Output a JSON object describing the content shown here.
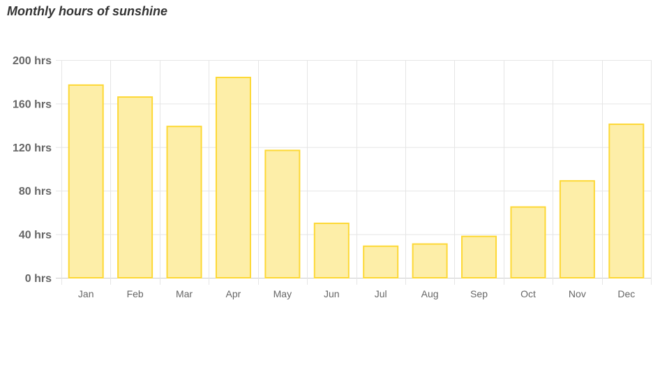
{
  "chart_data": {
    "type": "bar",
    "title": "Monthly hours of sunshine",
    "categories": [
      "Jan",
      "Feb",
      "Mar",
      "Apr",
      "May",
      "Jun",
      "Jul",
      "Aug",
      "Sep",
      "Oct",
      "Nov",
      "Dec"
    ],
    "values": [
      177,
      166,
      139,
      184,
      117,
      50,
      29,
      31,
      38,
      65,
      89,
      141
    ],
    "ylim": [
      0,
      200
    ],
    "yticks": [
      0,
      40,
      80,
      120,
      160,
      200
    ],
    "ytick_format": "{v} hrs",
    "xlabel": "",
    "ylabel": "",
    "grid": true,
    "colors": {
      "bar_fill": "#fdeea8",
      "bar_border": "#fdd835",
      "grid": "#e5e5e5"
    }
  }
}
